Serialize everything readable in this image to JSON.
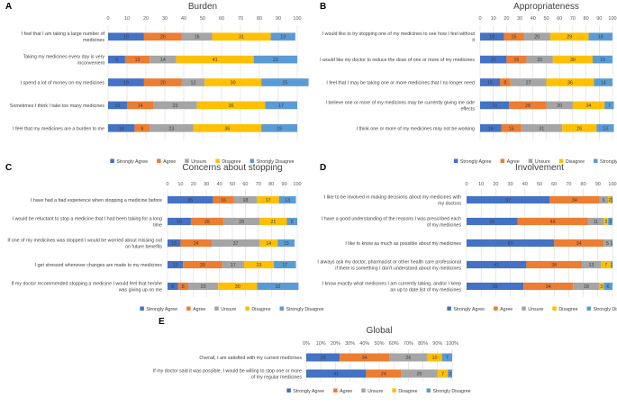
{
  "chart_data": [
    {
      "type": "bar",
      "letter": "A",
      "title": "Burden",
      "xlim": [
        0,
        100
      ],
      "tick_labels": [
        "0",
        "10",
        "20",
        "30",
        "40",
        "50",
        "60",
        "70",
        "80",
        "90",
        "100"
      ],
      "categories": [
        "I feel that I am taking a large number of medicines",
        "Taking my medicines every day is very inconvenient",
        "I spend a lot of money on my medicines",
        "Sometimes I think I take too many medicines",
        "I feel that my medicines are a burden to me"
      ],
      "series": [
        {
          "name": "Strongly Agree",
          "values": [
            19,
            9,
            19,
            10,
            14
          ]
        },
        {
          "name": "Agree",
          "values": [
            20,
            13,
            20,
            14,
            8
          ]
        },
        {
          "name": "Unsure",
          "values": [
            16,
            14,
            12,
            23,
            23
          ]
        },
        {
          "name": "Disagree",
          "values": [
            31,
            41,
            30,
            36,
            36
          ]
        },
        {
          "name": "Strongly Disagree",
          "values": [
            13,
            23,
            25,
            17,
            19
          ]
        }
      ],
      "legend": [
        "Strongly Agree",
        "Agree",
        "Unsure",
        "Disagree",
        "Strongly Disagree"
      ]
    },
    {
      "type": "bar",
      "letter": "B",
      "title": "Appropriateness",
      "xlim": [
        0,
        100
      ],
      "tick_labels": [
        "0",
        "10",
        "20",
        "30",
        "40",
        "50",
        "60",
        "70",
        "80",
        "90",
        "100"
      ],
      "categories": [
        "I would like to try stopping one of my medicines to see how I feel without it",
        "I would like my doctor to reduce the dose of one or more of my medicines",
        "I feel that I may be taking one or more medicines that I no longer need",
        "I believe one or more of my medicines may be currently giving me side effects",
        "I think one or more of my medicines may not be working"
      ],
      "series": [
        {
          "name": "Strongly Agree",
          "values": [
            18,
            20,
            15,
            22,
            16
          ]
        },
        {
          "name": "Agree",
          "values": [
            15,
            15,
            8,
            28,
            15
          ]
        },
        {
          "name": "Unsure",
          "values": [
            20,
            20,
            27,
            20,
            31
          ]
        },
        {
          "name": "Disagree",
          "values": [
            29,
            30,
            36,
            24,
            26
          ]
        },
        {
          "name": "Strongly Disagree",
          "values": [
            18,
            15,
            14,
            7,
            13
          ]
        }
      ],
      "legend": [
        "Strongly Agree",
        "Agree",
        "Unsure",
        "Disagree",
        "Strongly Disagree"
      ]
    },
    {
      "type": "bar",
      "letter": "C",
      "title": "Concerns about stopping",
      "xlim": [
        0,
        100
      ],
      "tick_labels": [
        "0",
        "10",
        "20",
        "30",
        "40",
        "50",
        "60",
        "70",
        "80",
        "90",
        "100"
      ],
      "categories": [
        "I have had a bad experience when stopping a medicine before",
        "I would be reluctant to stop a medicine that I had been taking for a long time",
        "If one of my medicines was stopped I would be worried about missing out on future benefits",
        "I get stressed whenever changes are made to my medicines",
        "If my doctor recommended stopping a medicine I would feel that he/she was giving up on me"
      ],
      "series": [
        {
          "name": "Strongly Agree",
          "values": [
            35,
            18,
            10,
            12,
            8
          ]
        },
        {
          "name": "Agree",
          "values": [
            16,
            25,
            24,
            30,
            8
          ]
        },
        {
          "name": "Unsure",
          "values": [
            18,
            28,
            37,
            17,
            23
          ]
        },
        {
          "name": "Disagree",
          "values": [
            17,
            21,
            14,
            23,
            30
          ]
        },
        {
          "name": "Strongly Disagree",
          "values": [
            13,
            8,
            13,
            17,
            32
          ]
        }
      ],
      "legend": [
        "Strongly Agree",
        "Agree",
        "Unsure",
        "Disagree",
        "Strongly Disagree"
      ]
    },
    {
      "type": "bar",
      "letter": "D",
      "title": "Involvement",
      "xlim": [
        0,
        100
      ],
      "tick_labels": [
        "0",
        "10",
        "20",
        "30",
        "40",
        "50",
        "60",
        "70",
        "80",
        "90",
        "100"
      ],
      "categories": [
        "I like to be involved in making decisions about my medicines with my doctors",
        "I have a good understanding of the reasons I was prescribed each of my medicines",
        "I like to know as much as possible about my medicines",
        "I always ask my doctor, pharmacist or other health care professional if there is something I don't understand about my medicines",
        "I know exactly what medicines I am currently taking, and/or I keep an up to date list of my medicines"
      ],
      "series": [
        {
          "name": "Strongly Agree",
          "values": [
            57,
            35,
            60,
            41,
            39
          ]
        },
        {
          "name": "Agree",
          "values": [
            34,
            48,
            34,
            38,
            34
          ]
        },
        {
          "name": "Unsure",
          "values": [
            6,
            11,
            5,
            13,
            18
          ]
        },
        {
          "name": "Disagree",
          "values": [
            2,
            3,
            0,
            7,
            3
          ]
        },
        {
          "name": "Strongly Disagree",
          "values": [
            1,
            3,
            1,
            1,
            6
          ]
        }
      ],
      "legend": [
        "Strongly Agree",
        "Agree",
        "Unsure",
        "Disagree",
        "Strongly Disagree"
      ]
    },
    {
      "type": "bar",
      "letter": "E",
      "title": "Global",
      "xlim": [
        0,
        100
      ],
      "tick_labels": [
        "0%",
        "10%",
        "20%",
        "30%",
        "40%",
        "50%",
        "60%",
        "70%",
        "80%",
        "90%",
        "100%"
      ],
      "categories": [
        "Overall, I am satisfied with my current medicines",
        "If my doctor said it was possible, I would be willing to stop one or more of my regular medicines"
      ],
      "series": [
        {
          "name": "Strongly Agree",
          "values": [
            23,
            41
          ]
        },
        {
          "name": "Agree",
          "values": [
            34,
            24
          ]
        },
        {
          "name": "Unsure",
          "values": [
            26,
            25
          ]
        },
        {
          "name": "Disagree",
          "values": [
            10,
            7
          ]
        },
        {
          "name": "Strongly Disagree",
          "values": [
            7,
            3
          ]
        }
      ],
      "legend": [
        "Strongly Agree",
        "Agree",
        "Unsure",
        "Disagree",
        "Strongly Disagree"
      ]
    }
  ],
  "colors": {
    "strongly_agree": "#4472c4",
    "agree": "#ed7d31",
    "unsure": "#a5a5a5",
    "disagree": "#ffc000",
    "strongly_disagree": "#5b9bd5",
    "grid": "#d9d9d9",
    "text": "#404040"
  }
}
